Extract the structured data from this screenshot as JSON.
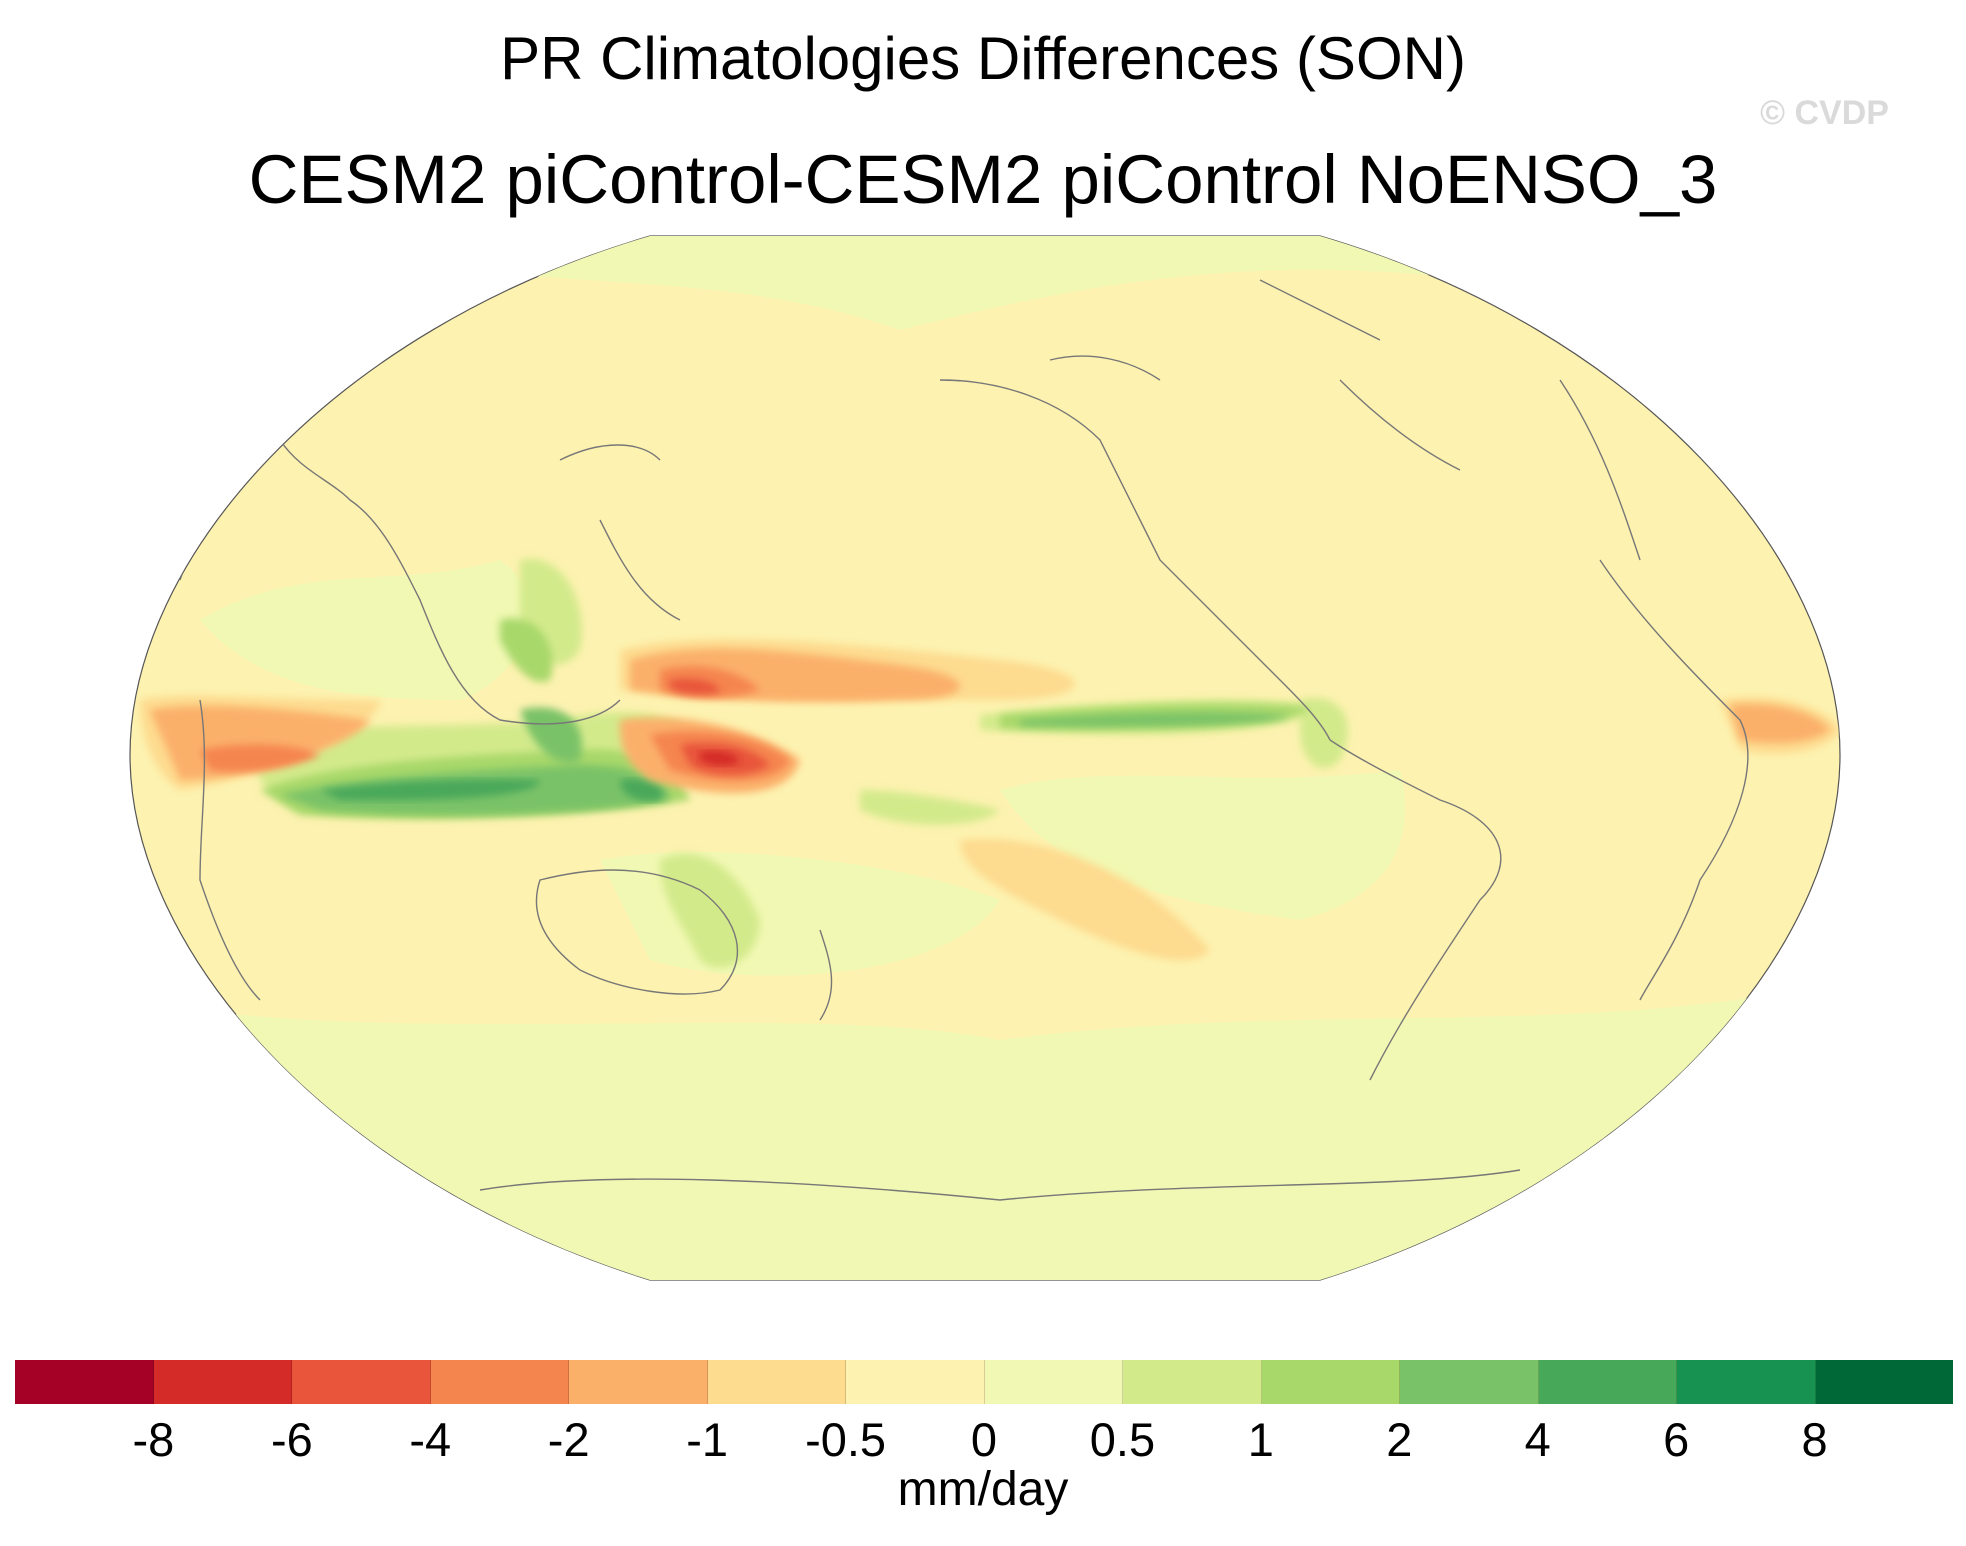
{
  "title": "PR Climatologies Differences (SON)",
  "subtitle": "CESM2 piControl-CESM2 piControl NoENSO_3",
  "watermark": "© CVDP",
  "colorbar": {
    "units": "mm/day",
    "colors": [
      "#a50026",
      "#d42a28",
      "#e8553b",
      "#f5854f",
      "#fbb06a",
      "#fddb8f",
      "#fef2b0",
      "#f1f8b3",
      "#d3ea8b",
      "#a8d86a",
      "#7ac267",
      "#48a85a",
      "#189250",
      "#006837"
    ],
    "ticks": [
      "-8",
      "-6",
      "-4",
      "-2",
      "-1",
      "-0.5",
      "0",
      "0.5",
      "1",
      "2",
      "4",
      "6",
      "8"
    ]
  },
  "map": {
    "projection": "robinson-like",
    "background_color": "#fdf2b0",
    "coastline_color": "#777777",
    "features": [
      {
        "name": "maritime-continent-positive-band",
        "color": "#7ac267",
        "value": 4
      },
      {
        "name": "maritime-continent-core",
        "color": "#48a85a",
        "value": 6
      },
      {
        "name": "western-pacific-negative-core",
        "color": "#d42a28",
        "value": -6
      },
      {
        "name": "western-pacific-negative-band",
        "color": "#f5854f",
        "value": -2
      },
      {
        "name": "western-indian-ocean-negative",
        "color": "#f5854f",
        "value": -2
      },
      {
        "name": "eastern-pacific-itcz-positive",
        "color": "#7ac267",
        "value": 2
      },
      {
        "name": "southern-pacific-convergence-negative",
        "color": "#fddb8f",
        "value": -0.5
      },
      {
        "name": "atlantic-negative",
        "color": "#fbb06a",
        "value": -1
      }
    ]
  }
}
